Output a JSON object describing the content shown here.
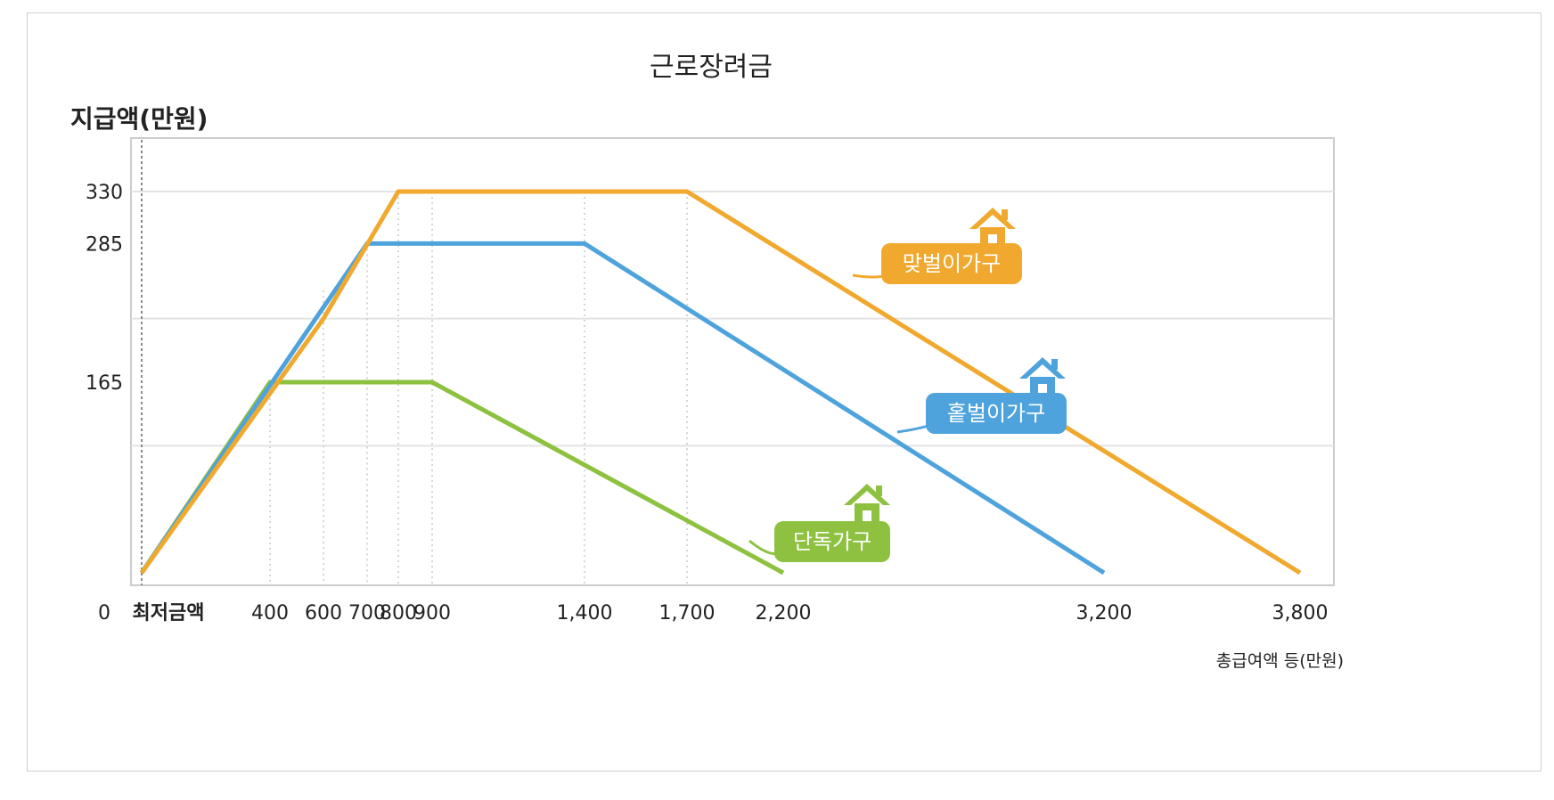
{
  "chart_data": {
    "type": "line",
    "title": "근로장려금",
    "ylabel": "지급액(만원)",
    "xlabel": "총급여액 등(만원)",
    "x_origin_label": "0",
    "x_min_label": "최저금액",
    "x_ticks": [
      {
        "value": 400,
        "label": "400"
      },
      {
        "value": 600,
        "label": "600"
      },
      {
        "value": 700,
        "label": "700"
      },
      {
        "value": 800,
        "label": "800"
      },
      {
        "value": 900,
        "label": "900"
      },
      {
        "value": 1400,
        "label": "1,400"
      },
      {
        "value": 1700,
        "label": "1,700"
      },
      {
        "value": 2200,
        "label": "2,200"
      },
      {
        "value": 3200,
        "label": "3,200"
      },
      {
        "value": 3800,
        "label": "3,800"
      }
    ],
    "y_ticks": [
      {
        "value": 330,
        "label": "330"
      },
      {
        "value": 285,
        "label": "285"
      },
      {
        "value": 165,
        "label": "165"
      }
    ],
    "gridlines_y": [
      110,
      220,
      330
    ],
    "xlim": [
      0,
      3800
    ],
    "ylim": [
      0,
      370
    ],
    "grid": true,
    "series": [
      {
        "name": "단독가구",
        "color": "#8dc13f",
        "points": [
          [
            0,
            0
          ],
          [
            400,
            165
          ],
          [
            900,
            165
          ],
          [
            2200,
            0
          ]
        ]
      },
      {
        "name": "홑벌이가구",
        "color": "#4fa3dc",
        "points": [
          [
            0,
            0
          ],
          [
            700,
            285
          ],
          [
            1400,
            285
          ],
          [
            3200,
            0
          ]
        ]
      },
      {
        "name": "맞벌이가구",
        "color": "#f0a92e",
        "points": [
          [
            0,
            0
          ],
          [
            600,
            220
          ],
          [
            800,
            330
          ],
          [
            1700,
            330
          ],
          [
            3800,
            0
          ]
        ]
      }
    ],
    "labels_placement": "inline, near each line with house icon"
  }
}
